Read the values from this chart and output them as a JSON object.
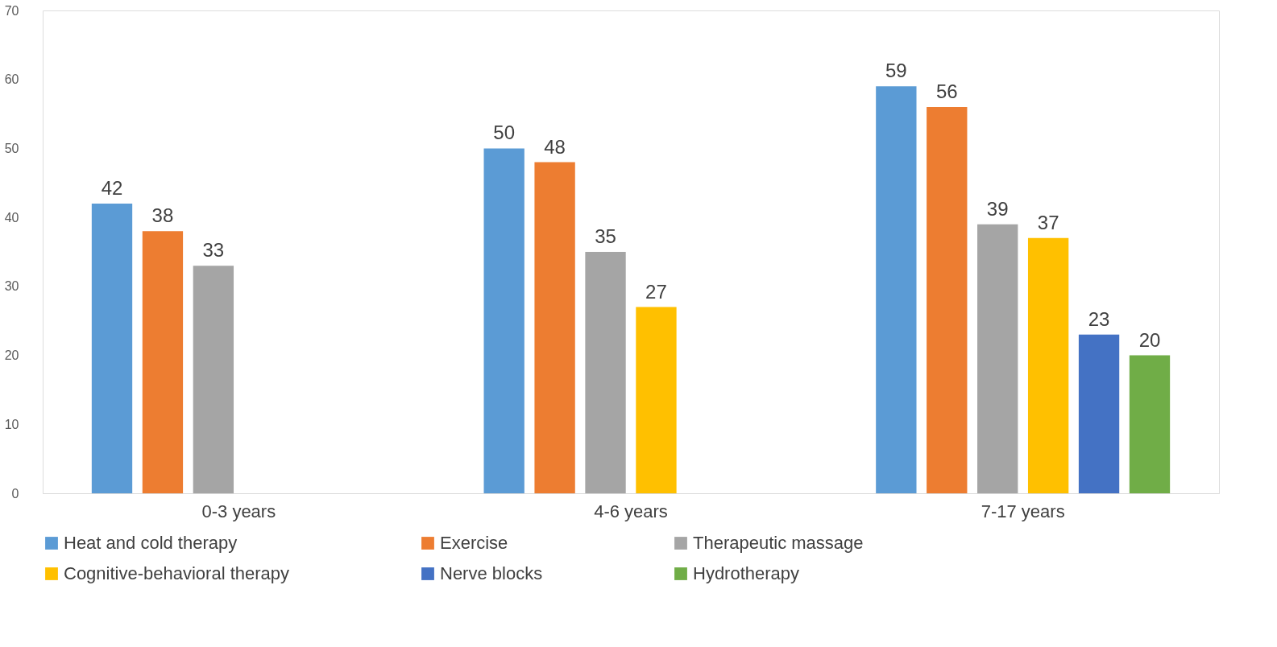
{
  "chart_data": {
    "type": "bar",
    "categories": [
      "0-3 years",
      "4-6 years",
      "7-17 years"
    ],
    "series": [
      {
        "name": "Heat  and cold therapy",
        "color": "#5b9bd5",
        "values": [
          42,
          50,
          59
        ]
      },
      {
        "name": "Exercise",
        "color": "#ed7d31",
        "values": [
          38,
          48,
          56
        ]
      },
      {
        "name": "Therapeutic massage",
        "color": "#a5a5a5",
        "values": [
          33,
          35,
          39
        ]
      },
      {
        "name": "Cognitive-behavioral therapy",
        "color": "#ffc000",
        "values": [
          null,
          27,
          37
        ]
      },
      {
        "name": "Nerve blocks",
        "color": "#4472c4",
        "values": [
          null,
          null,
          23
        ]
      },
      {
        "name": "Hydrotherapy",
        "color": "#70ad47",
        "values": [
          null,
          null,
          20
        ]
      }
    ],
    "ylim": [
      0,
      70
    ],
    "yticks": [
      0,
      10,
      20,
      30,
      40,
      50,
      60,
      70
    ],
    "grid": false,
    "legend": "bottom",
    "data_labels": true
  }
}
